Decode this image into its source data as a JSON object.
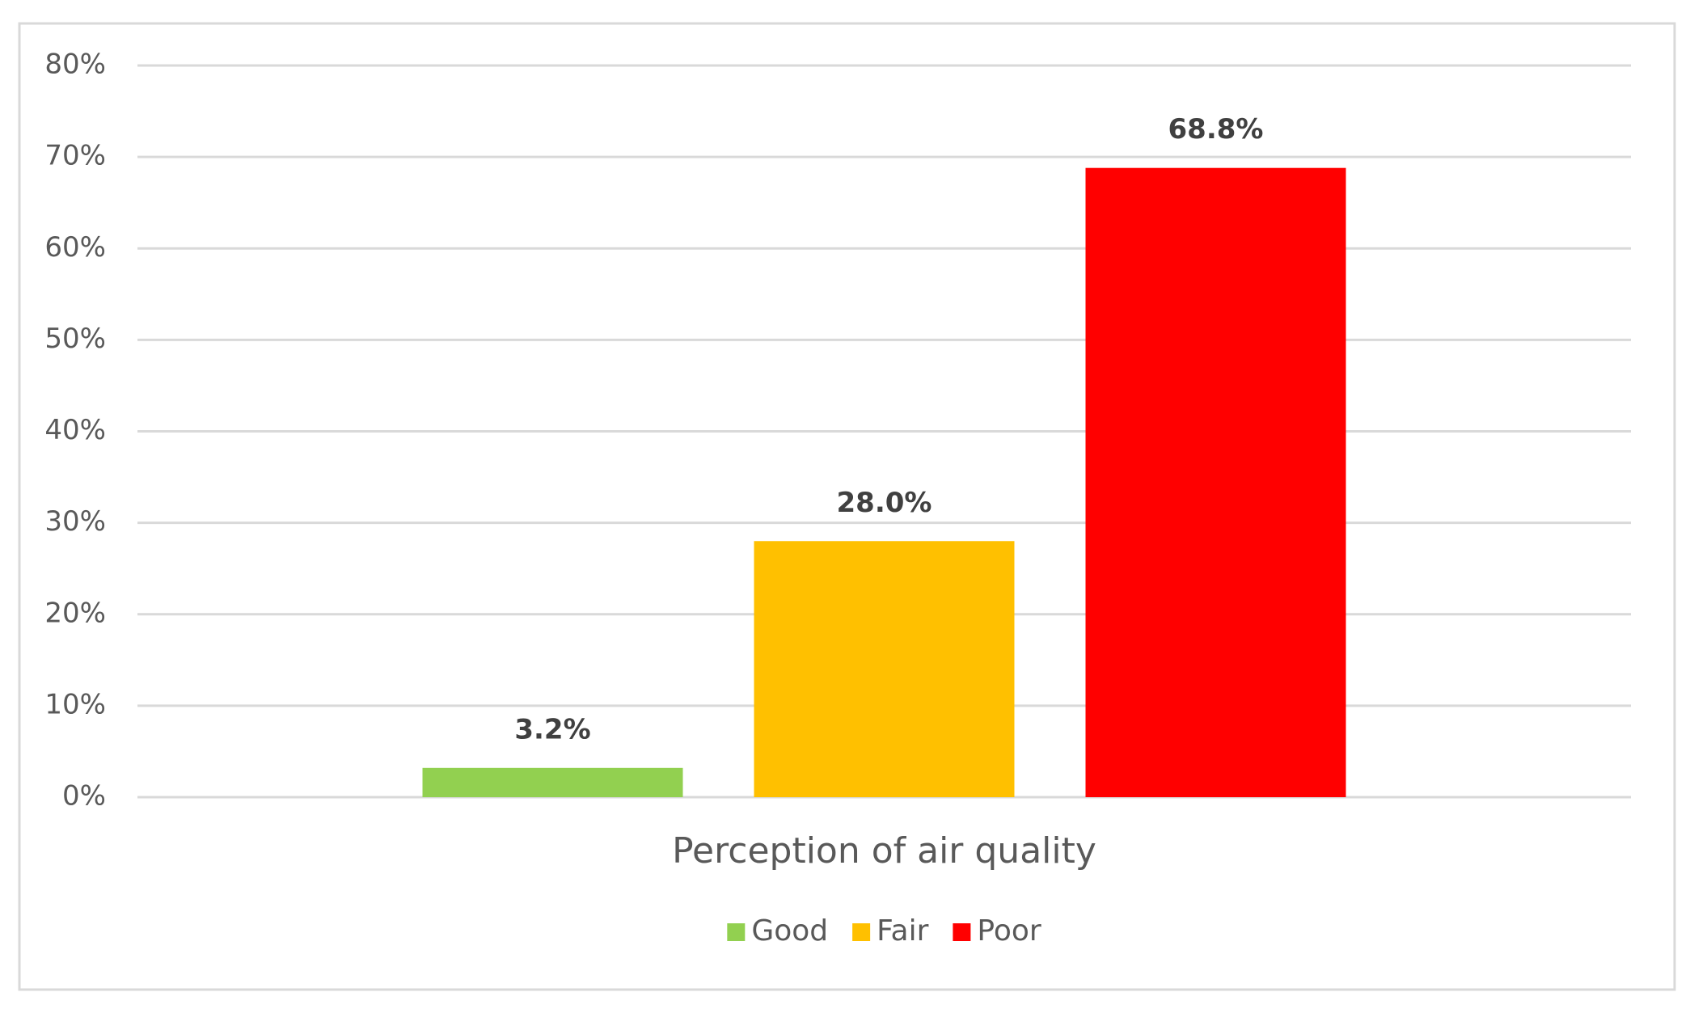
{
  "chart_data": {
    "type": "bar",
    "categories": [
      "Perception of air quality"
    ],
    "series": [
      {
        "name": "Good",
        "color": "#92d050",
        "values": [
          3.2
        ],
        "value_labels": [
          "3.2%"
        ]
      },
      {
        "name": "Fair",
        "color": "#ffc000",
        "values": [
          28.0
        ],
        "value_labels": [
          "28.0%"
        ]
      },
      {
        "name": "Poor",
        "color": "#ff0000",
        "values": [
          68.8
        ],
        "value_labels": [
          "68.8%"
        ]
      }
    ],
    "ylim": [
      0,
      80
    ],
    "yticks": [
      {
        "value": 0,
        "label": "0%"
      },
      {
        "value": 10,
        "label": "10%"
      },
      {
        "value": 20,
        "label": "20%"
      },
      {
        "value": 30,
        "label": "30%"
      },
      {
        "value": 40,
        "label": "40%"
      },
      {
        "value": 50,
        "label": "50%"
      },
      {
        "value": 60,
        "label": "60%"
      },
      {
        "value": 70,
        "label": "70%"
      },
      {
        "value": 80,
        "label": "80%"
      }
    ],
    "grid": true,
    "legend": "bottom"
  }
}
